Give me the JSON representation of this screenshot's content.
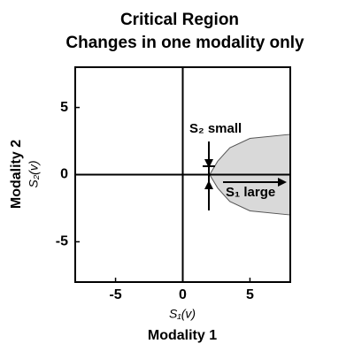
{
  "chart_data": {
    "type": "region",
    "title": [
      "Critical Region",
      "Changes in one modality only"
    ],
    "xlabel": [
      "S₁(v)",
      "Modality 1"
    ],
    "ylabel": [
      "Modality 2",
      "S₂(v)"
    ],
    "xlim": [
      -8,
      8
    ],
    "ylim": [
      -8,
      8
    ],
    "xticks": [
      -5,
      0,
      5
    ],
    "yticks": [
      -5,
      0,
      5
    ],
    "zero_lines": {
      "x": 0,
      "y": 0
    },
    "region": {
      "x": [
        8,
        5,
        3.5,
        2.6,
        2,
        2.6,
        3.5,
        5,
        8
      ],
      "y": [
        3,
        2.7,
        2,
        1,
        0,
        -1,
        -2,
        -2.7,
        -3
      ],
      "color": "#d9d9d9"
    },
    "annotations": [
      "S₂ small",
      "S₁ large"
    ]
  }
}
